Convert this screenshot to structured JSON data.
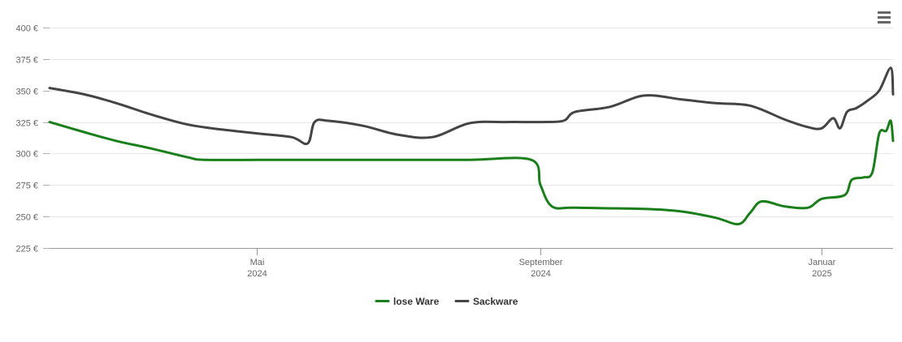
{
  "chart_data": {
    "type": "line",
    "title": "",
    "xlabel": "",
    "ylabel": "",
    "y_unit": "€",
    "ylim": [
      225,
      400
    ],
    "yticks": [
      225,
      250,
      275,
      300,
      325,
      350,
      375,
      400
    ],
    "ytick_labels": [
      "225 €",
      "250 €",
      "275 €",
      "300 €",
      "325 €",
      "350 €",
      "375 €",
      "400 €"
    ],
    "xlim": [
      "2024-02-01",
      "2025-02-01"
    ],
    "xticks": [
      {
        "date": "2024-05-01",
        "label": [
          "Mai",
          "2024"
        ]
      },
      {
        "date": "2024-09-01",
        "label": [
          "September",
          "2024"
        ]
      },
      {
        "date": "2025-01-01",
        "label": [
          "Januar",
          "2025"
        ]
      }
    ],
    "grid": true,
    "legend_position": "bottom-center",
    "series": [
      {
        "name": "lose Ware",
        "color": "#1a7f1a",
        "points": [
          [
            "2024-02-01",
            325
          ],
          [
            "2024-02-16",
            317
          ],
          [
            "2024-03-01",
            310
          ],
          [
            "2024-03-16",
            304
          ],
          [
            "2024-04-01",
            297
          ],
          [
            "2024-04-08",
            295
          ],
          [
            "2024-05-01",
            295
          ],
          [
            "2024-06-01",
            295
          ],
          [
            "2024-07-01",
            295
          ],
          [
            "2024-08-01",
            295
          ],
          [
            "2024-08-28",
            295
          ],
          [
            "2024-09-01",
            275
          ],
          [
            "2024-09-06",
            258
          ],
          [
            "2024-09-16",
            257
          ],
          [
            "2024-10-16",
            256
          ],
          [
            "2024-11-01",
            254
          ],
          [
            "2024-11-16",
            249
          ],
          [
            "2024-11-26",
            244
          ],
          [
            "2024-12-01",
            253
          ],
          [
            "2024-12-06",
            262
          ],
          [
            "2024-12-16",
            258
          ],
          [
            "2024-12-26",
            257
          ],
          [
            "2025-01-01",
            264
          ],
          [
            "2025-01-11",
            267
          ],
          [
            "2025-01-14",
            279
          ],
          [
            "2025-01-19",
            281
          ],
          [
            "2025-01-23",
            285
          ],
          [
            "2025-01-26",
            316
          ],
          [
            "2025-01-29",
            318
          ],
          [
            "2025-01-31",
            326
          ],
          [
            "2025-02-01",
            310
          ]
        ]
      },
      {
        "name": "Sackware",
        "color": "#444444",
        "points": [
          [
            "2024-02-01",
            352
          ],
          [
            "2024-02-16",
            347
          ],
          [
            "2024-03-01",
            340
          ],
          [
            "2024-03-16",
            331
          ],
          [
            "2024-04-01",
            323
          ],
          [
            "2024-04-16",
            319
          ],
          [
            "2024-05-01",
            316
          ],
          [
            "2024-05-16",
            313
          ],
          [
            "2024-05-23",
            308
          ],
          [
            "2024-05-26",
            325
          ],
          [
            "2024-06-01",
            326
          ],
          [
            "2024-06-16",
            322
          ],
          [
            "2024-07-01",
            315
          ],
          [
            "2024-07-16",
            313
          ],
          [
            "2024-08-01",
            324
          ],
          [
            "2024-08-16",
            325
          ],
          [
            "2024-09-01",
            325
          ],
          [
            "2024-09-11",
            326
          ],
          [
            "2024-09-16",
            333
          ],
          [
            "2024-10-01",
            337
          ],
          [
            "2024-10-16",
            346
          ],
          [
            "2024-11-01",
            343
          ],
          [
            "2024-11-16",
            340
          ],
          [
            "2024-12-01",
            338
          ],
          [
            "2024-12-16",
            327
          ],
          [
            "2024-12-26",
            321
          ],
          [
            "2025-01-01",
            320
          ],
          [
            "2025-01-06",
            328
          ],
          [
            "2025-01-09",
            320
          ],
          [
            "2025-01-12",
            333
          ],
          [
            "2025-01-16",
            336
          ],
          [
            "2025-01-21",
            342
          ],
          [
            "2025-01-26",
            350
          ],
          [
            "2025-01-31",
            368
          ],
          [
            "2025-02-01",
            347
          ]
        ]
      }
    ]
  },
  "menu": {
    "icon": "hamburger-menu-icon"
  }
}
